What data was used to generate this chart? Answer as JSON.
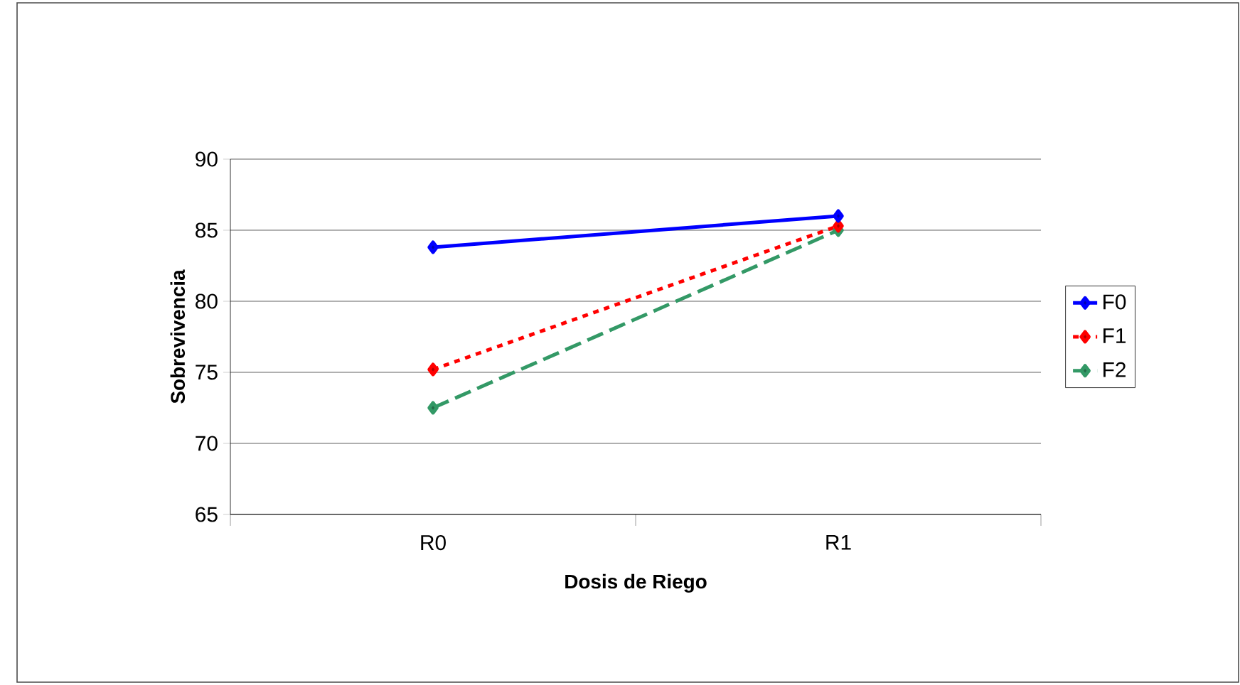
{
  "chart_data": {
    "type": "line",
    "xlabel": "Dosis de Riego",
    "ylabel": "Sobrevivencia",
    "categories": [
      "R0",
      "R1"
    ],
    "series": [
      {
        "name": "F0",
        "color": "#0000ff",
        "values": [
          83.8,
          86.0
        ],
        "line_style": "solid"
      },
      {
        "name": "F1",
        "color": "#ff0000",
        "values": [
          75.2,
          85.3
        ],
        "line_style": "dotted"
      },
      {
        "name": "F2",
        "color": "#339966",
        "values": [
          72.5,
          85.0
        ],
        "line_style": "dashed"
      }
    ],
    "ylim": [
      65,
      90
    ],
    "yticks": [
      65,
      70,
      75,
      80,
      85,
      90
    ],
    "grid": "y",
    "legend": "right",
    "marker": "diamond"
  }
}
